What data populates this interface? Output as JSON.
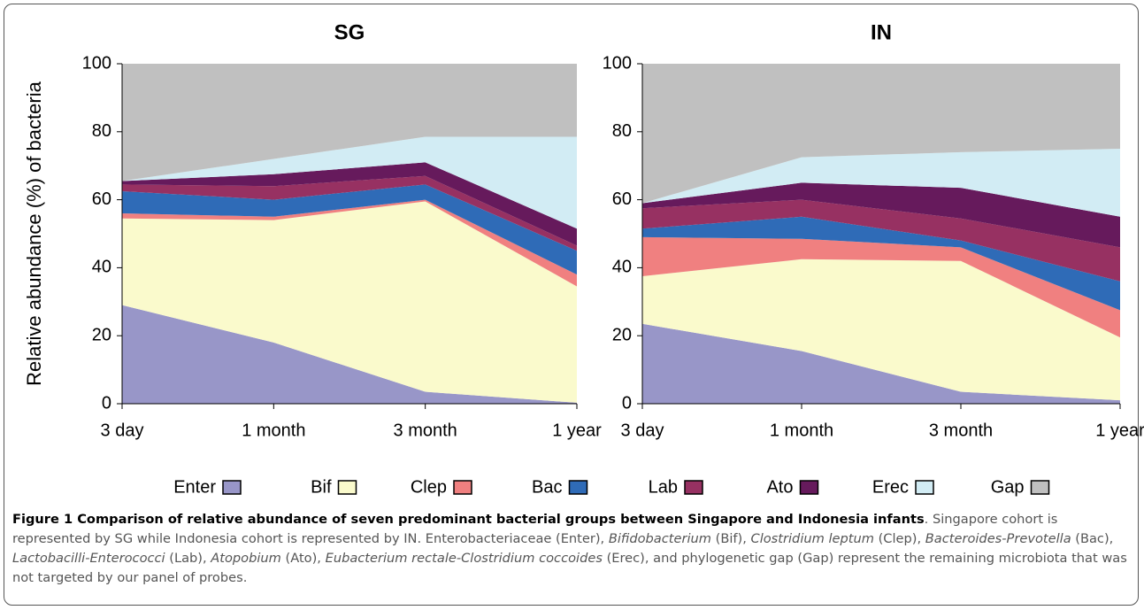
{
  "chart_data": [
    {
      "type": "stacked-area",
      "title": "SG",
      "ylabel": "Relative abundance (%) of bacteria",
      "categories": [
        "3 day",
        "1 month",
        "3 month",
        "1 year"
      ],
      "ylim": [
        0,
        100
      ],
      "yticks": [
        0,
        20,
        40,
        60,
        80,
        100
      ],
      "legend": "bottom",
      "series": [
        {
          "name": "Enter",
          "color": "#9896c8",
          "values": [
            29,
            18,
            3.5,
            0.3
          ]
        },
        {
          "name": "Bif",
          "color": "#fafacc",
          "values": [
            25.5,
            36,
            56,
            34.2
          ]
        },
        {
          "name": "Clep",
          "color": "#f08080",
          "values": [
            1.5,
            1,
            0.5,
            3.5
          ]
        },
        {
          "name": "Bac",
          "color": "#2f6bb7",
          "values": [
            6.5,
            5,
            4.5,
            7
          ]
        },
        {
          "name": "Lab",
          "color": "#973162",
          "values": [
            2,
            4,
            2.5,
            1.5
          ]
        },
        {
          "name": "Ato",
          "color": "#661a5c",
          "values": [
            1,
            3.5,
            4,
            5
          ]
        },
        {
          "name": "Erec",
          "color": "#d2ecf4",
          "values": [
            0,
            4.5,
            7.5,
            27
          ]
        },
        {
          "name": "Gap",
          "color": "#c0c0c0",
          "values": [
            34.5,
            28,
            21.5,
            21.5
          ]
        }
      ]
    },
    {
      "type": "stacked-area",
      "title": "IN",
      "categories": [
        "3 day",
        "1 month",
        "3 month",
        "1 year"
      ],
      "ylim": [
        0,
        100
      ],
      "yticks": [
        0,
        20,
        40,
        60,
        80,
        100
      ],
      "series": [
        {
          "values": [
            23.5,
            15.5,
            3.5,
            1
          ]
        },
        {
          "values": [
            14,
            27,
            38.5,
            18.5
          ]
        },
        {
          "values": [
            11.5,
            6,
            4,
            8
          ]
        },
        {
          "values": [
            2.5,
            6.5,
            2,
            8.5
          ]
        },
        {
          "values": [
            6,
            5,
            6.5,
            10
          ]
        },
        {
          "values": [
            1.5,
            5,
            9,
            9
          ]
        },
        {
          "values": [
            0,
            7.5,
            10.5,
            20
          ]
        },
        {
          "values": [
            41,
            27.5,
            26,
            25
          ]
        }
      ]
    }
  ],
  "caption": {
    "runs": [
      {
        "style": "bold",
        "text": "Figure 1 Comparison of relative abundance of seven predominant bacterial groups between Singapore and Indonesia infants"
      },
      {
        "style": "normal",
        "text": ". Singapore cohort is represented by SG while Indonesia cohort is represented by IN. Enterobacteriaceae (Enter), "
      },
      {
        "style": "italic",
        "text": "Bifidobacterium"
      },
      {
        "style": "normal",
        "text": " (Bif), "
      },
      {
        "style": "italic",
        "text": "Clostridium leptum"
      },
      {
        "style": "normal",
        "text": " (Clep), "
      },
      {
        "style": "italic",
        "text": "Bacteroides-Prevotella"
      },
      {
        "style": "normal",
        "text": " (Bac), "
      },
      {
        "style": "italic",
        "text": "Lactobacilli-Enterococci"
      },
      {
        "style": "normal",
        "text": " (Lab), "
      },
      {
        "style": "italic",
        "text": "Atopobium"
      },
      {
        "style": "normal",
        "text": " (Ato), "
      },
      {
        "style": "italic",
        "text": "Eubacterium rectale-Clostridium coccoides"
      },
      {
        "style": "normal",
        "text": " (Erec), and phylogenetic gap (Gap) represent the remaining microbiota that was not targeted by our panel of probes."
      }
    ]
  }
}
